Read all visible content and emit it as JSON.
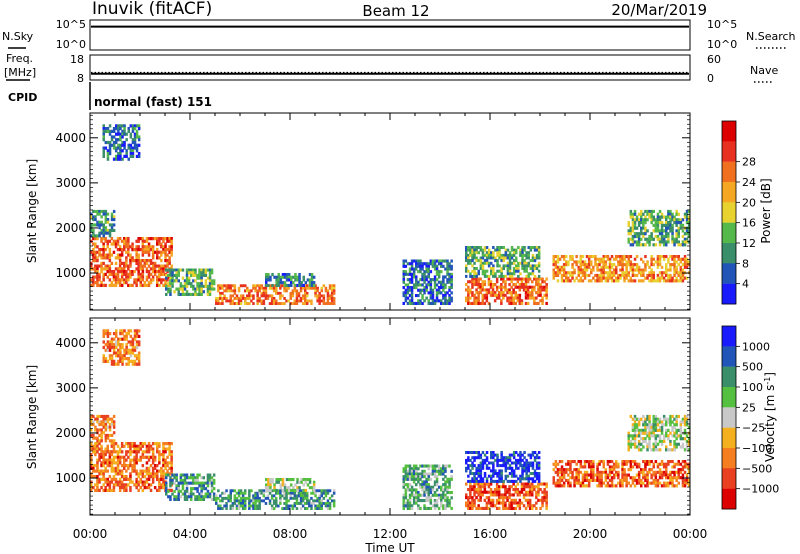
{
  "header": {
    "station": "Inuvik (fitACF)",
    "beam": "Beam 12",
    "date": "20/Mar/2019"
  },
  "sky_panel": {
    "left_label": "N.Sky",
    "left_ticks": [
      "10^5",
      "10^0"
    ],
    "right_label": "N.Search",
    "right_ticks": [
      "10^5",
      "10^0"
    ],
    "level_fraction": 0.78
  },
  "freq_panel": {
    "left_label_1": "Freq.",
    "left_label_2": "[MHz]",
    "left_ticks": [
      "18",
      "8"
    ],
    "right_label": "Nave",
    "right_ticks": [
      "60",
      "0"
    ],
    "freq_level_fraction": 0.25,
    "nave_level_fraction": 0.18
  },
  "cpid": {
    "label": "CPID",
    "value": "normal (fast) 151"
  },
  "chart_data": [
    {
      "type": "heatmap",
      "quantity": "Power",
      "xlabel": "Time UT",
      "ylabel": "Slant Range [km]",
      "colorbar_label": "Power [dB]",
      "x_ticks": [
        "00:00",
        "04:00",
        "08:00",
        "12:00",
        "16:00",
        "20:00",
        "00:00"
      ],
      "xlim_hours": [
        0,
        24
      ],
      "ylim": [
        180,
        4550
      ],
      "y_ticks": [
        1000,
        2000,
        3000,
        4000
      ],
      "colorbar_ticks": [
        "4",
        "8",
        "12",
        "16",
        "20",
        "24",
        "28"
      ],
      "colorbar_colors": [
        "#1a1aff",
        "#2255b8",
        "#3a8f6a",
        "#55b84a",
        "#e8d230",
        "#f5a623",
        "#f07020",
        "#e83020",
        "#dd0000"
      ],
      "echo_regions": [
        {
          "t0": 0.0,
          "t1": 3.3,
          "r0": 700,
          "r1": 1800,
          "level": 0.75
        },
        {
          "t0": 0.0,
          "t1": 1.0,
          "r0": 1800,
          "r1": 2400,
          "level": 0.3
        },
        {
          "t0": 0.5,
          "t1": 2.0,
          "r0": 3500,
          "r1": 4300,
          "level": 0.2
        },
        {
          "t0": 3.0,
          "t1": 5.0,
          "r0": 500,
          "r1": 1100,
          "level": 0.35
        },
        {
          "t0": 5.0,
          "t1": 9.8,
          "r0": 300,
          "r1": 750,
          "level": 0.7
        },
        {
          "t0": 7.0,
          "t1": 9.0,
          "r0": 700,
          "r1": 1000,
          "level": 0.25
        },
        {
          "t0": 12.5,
          "t1": 14.5,
          "r0": 300,
          "r1": 1300,
          "level": 0.2
        },
        {
          "t0": 15.0,
          "t1": 18.3,
          "r0": 300,
          "r1": 900,
          "level": 0.75
        },
        {
          "t0": 15.0,
          "t1": 18.0,
          "r0": 900,
          "r1": 1600,
          "level": 0.35
        },
        {
          "t0": 18.5,
          "t1": 24.0,
          "r0": 800,
          "r1": 1400,
          "level": 0.65
        },
        {
          "t0": 21.5,
          "t1": 24.0,
          "r0": 1600,
          "r1": 2400,
          "level": 0.35
        }
      ]
    },
    {
      "type": "heatmap",
      "quantity": "Velocity",
      "xlabel": "Time UT",
      "ylabel": "Slant Range [km]",
      "colorbar_label": "Velocity [m s",
      "colorbar_label_sup": "-1",
      "colorbar_label_end": "]",
      "x_ticks": [
        "00:00",
        "04:00",
        "08:00",
        "12:00",
        "16:00",
        "20:00",
        "00:00"
      ],
      "xlim_hours": [
        0,
        24
      ],
      "ylim": [
        180,
        4550
      ],
      "y_ticks": [
        1000,
        2000,
        3000,
        4000
      ],
      "colorbar_ticks": [
        "1000",
        "500",
        "100",
        "25",
        "-25",
        "-100",
        "-500",
        "-1000"
      ],
      "colorbar_colors": [
        "#1a1aff",
        "#2255b8",
        "#3a8f6a",
        "#55c040",
        "#c8c8c8",
        "#f5b020",
        "#f57e20",
        "#e84020",
        "#dd0000"
      ],
      "echo_regions": [
        {
          "t0": 0.0,
          "t1": 3.3,
          "r0": 700,
          "r1": 1800,
          "level": 0.75
        },
        {
          "t0": 0.0,
          "t1": 1.0,
          "r0": 1800,
          "r1": 2400,
          "level": 0.7
        },
        {
          "t0": 0.5,
          "t1": 2.0,
          "r0": 3500,
          "r1": 4300,
          "level": 0.72
        },
        {
          "t0": 3.0,
          "t1": 5.0,
          "r0": 500,
          "r1": 1100,
          "level": 0.3
        },
        {
          "t0": 5.0,
          "t1": 9.8,
          "r0": 300,
          "r1": 750,
          "level": 0.3
        },
        {
          "t0": 7.0,
          "t1": 9.0,
          "r0": 700,
          "r1": 1000,
          "level": 0.45
        },
        {
          "t0": 12.5,
          "t1": 14.5,
          "r0": 300,
          "r1": 1300,
          "level": 0.35
        },
        {
          "t0": 15.0,
          "t1": 18.3,
          "r0": 300,
          "r1": 900,
          "level": 0.8
        },
        {
          "t0": 15.0,
          "t1": 18.0,
          "r0": 900,
          "r1": 1600,
          "level": 0.1
        },
        {
          "t0": 18.5,
          "t1": 24.0,
          "r0": 800,
          "r1": 1400,
          "level": 0.78
        },
        {
          "t0": 21.5,
          "t1": 24.0,
          "r0": 1600,
          "r1": 2400,
          "level": 0.45
        }
      ]
    }
  ]
}
